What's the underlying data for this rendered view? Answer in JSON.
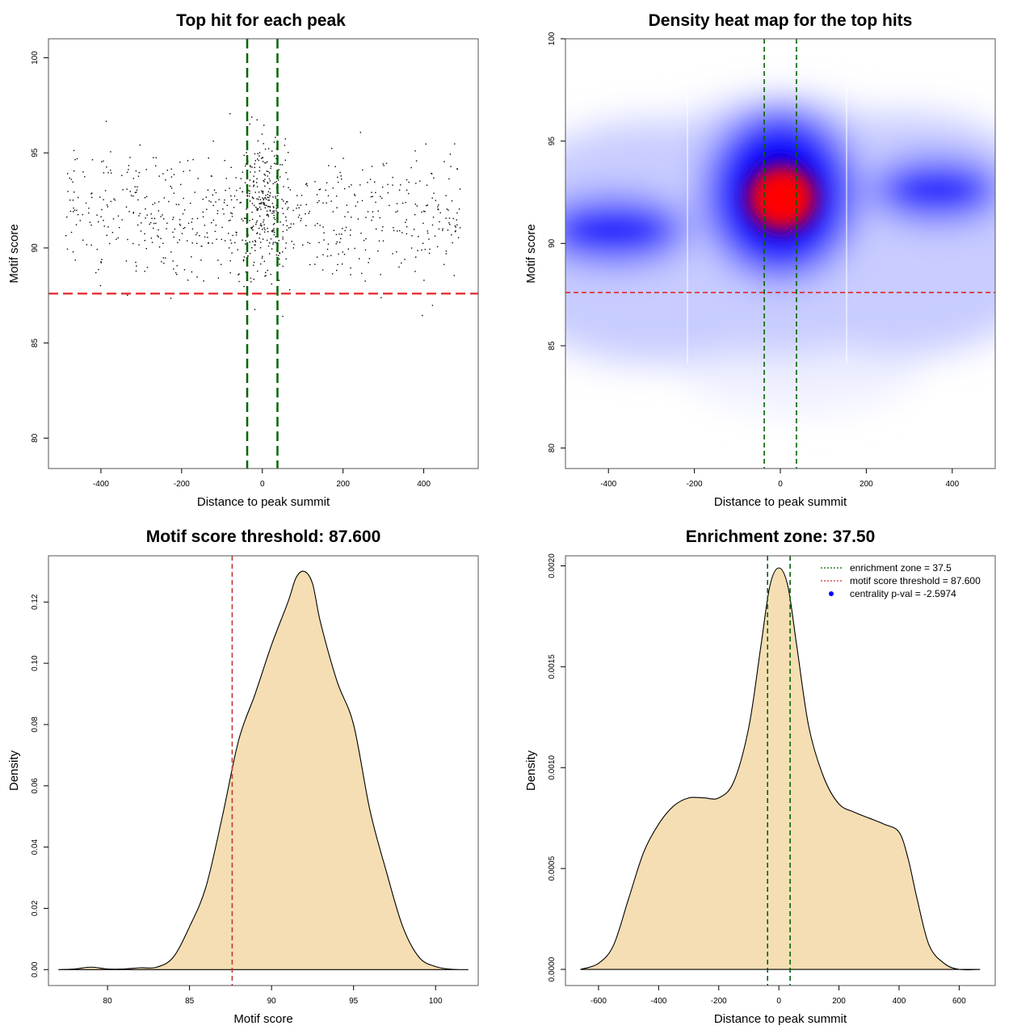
{
  "chart_data": [
    {
      "type": "scatter",
      "title": "Top hit for each peak",
      "xlabel": "Distance to peak summit",
      "ylabel": "Motif score",
      "xlim": [
        -530,
        535
      ],
      "ylim": [
        78.4,
        101
      ],
      "xticks": [
        -400,
        -200,
        0,
        200,
        400
      ],
      "yticks": [
        80,
        85,
        90,
        95,
        100
      ],
      "hline": 87.6,
      "vlines": [
        -37.5,
        37.5
      ],
      "point_count": 900
    },
    {
      "type": "heatmap",
      "title": "Density heat map for the top hits",
      "xlabel": "Distance to peak summit",
      "ylabel": "Motif score",
      "xlim": [
        -500,
        500
      ],
      "ylim": [
        79,
        100
      ],
      "xticks": [
        -400,
        -200,
        0,
        200,
        400
      ],
      "yticks": [
        80,
        85,
        90,
        95,
        100
      ],
      "hline": 87.6,
      "vlines": [
        -37.5,
        37.5
      ],
      "colors": [
        "#ffffff",
        "#0000ff",
        "#ff0000"
      ]
    },
    {
      "type": "area",
      "title": "Motif score threshold: 87.600",
      "xlabel": "Motif score",
      "ylabel": "Density",
      "xlim": [
        76.4,
        102.6
      ],
      "ylim": [
        -0.0052,
        0.1351
      ],
      "xticks": [
        80,
        85,
        90,
        95,
        100
      ],
      "yticks": [
        0.0,
        0.02,
        0.04,
        0.06,
        0.08,
        0.1,
        0.12
      ],
      "ytick_labels": [
        "0.00",
        "0.02",
        "0.04",
        "0.06",
        "0.08",
        "0.10",
        "0.12"
      ],
      "vline": 87.6,
      "fill": "#f5deb3",
      "x": [
        77,
        78,
        79,
        80,
        81,
        82,
        83,
        84,
        85,
        86,
        87,
        88,
        89,
        90,
        91,
        91.5,
        92,
        92.5,
        93,
        94,
        95,
        96,
        97,
        98,
        99,
        100,
        101,
        102
      ],
      "y": [
        0.0,
        0.0002,
        0.0008,
        0.0002,
        0.0002,
        0.0006,
        0.0008,
        0.004,
        0.014,
        0.027,
        0.05,
        0.075,
        0.09,
        0.106,
        0.12,
        0.128,
        0.13,
        0.126,
        0.113,
        0.094,
        0.08,
        0.052,
        0.032,
        0.014,
        0.004,
        0.001,
        0.0001,
        0.0
      ]
    },
    {
      "type": "area",
      "title": "Enrichment zone: 37.50",
      "xlabel": "Distance to peak summit",
      "ylabel": "Density",
      "xlim": [
        -710,
        720
      ],
      "ylim": [
        -8e-05,
        0.00205
      ],
      "xticks": [
        -600,
        -400,
        -200,
        0,
        200,
        400,
        600
      ],
      "yticks": [
        0.0,
        0.0005,
        0.001,
        0.0015,
        0.002
      ],
      "ytick_labels": [
        "0.0000",
        "0.0005",
        "0.0010",
        "0.0015",
        "0.0020"
      ],
      "vlines": [
        -37.5,
        37.5
      ],
      "fill": "#f5deb3",
      "x": [
        -660,
        -600,
        -550,
        -500,
        -450,
        -400,
        -350,
        -300,
        -250,
        -200,
        -150,
        -100,
        -60,
        -30,
        0,
        30,
        60,
        100,
        150,
        200,
        250,
        300,
        350,
        400,
        430,
        460,
        500,
        550,
        600,
        670
      ],
      "y": [
        0.0,
        3e-05,
        0.00012,
        0.00035,
        0.00058,
        0.00072,
        0.00081,
        0.00085,
        0.00085,
        0.00085,
        0.00093,
        0.0012,
        0.0016,
        0.0019,
        0.00199,
        0.0019,
        0.0016,
        0.0012,
        0.00095,
        0.00082,
        0.00078,
        0.00075,
        0.00072,
        0.00068,
        0.00055,
        0.00035,
        0.00012,
        3e-05,
        0.0,
        0.0
      ],
      "legend": [
        {
          "label": "enrichment zone = 37.5",
          "color": "#006400",
          "style": "dotted-line"
        },
        {
          "label": "motif score threshold = 87.600",
          "color": "#d62728",
          "style": "dotted-line"
        },
        {
          "label": "centrality p-val = -2.5974",
          "color": "#0000ff",
          "style": "dot"
        }
      ],
      "legend_position": "top-right"
    }
  ]
}
